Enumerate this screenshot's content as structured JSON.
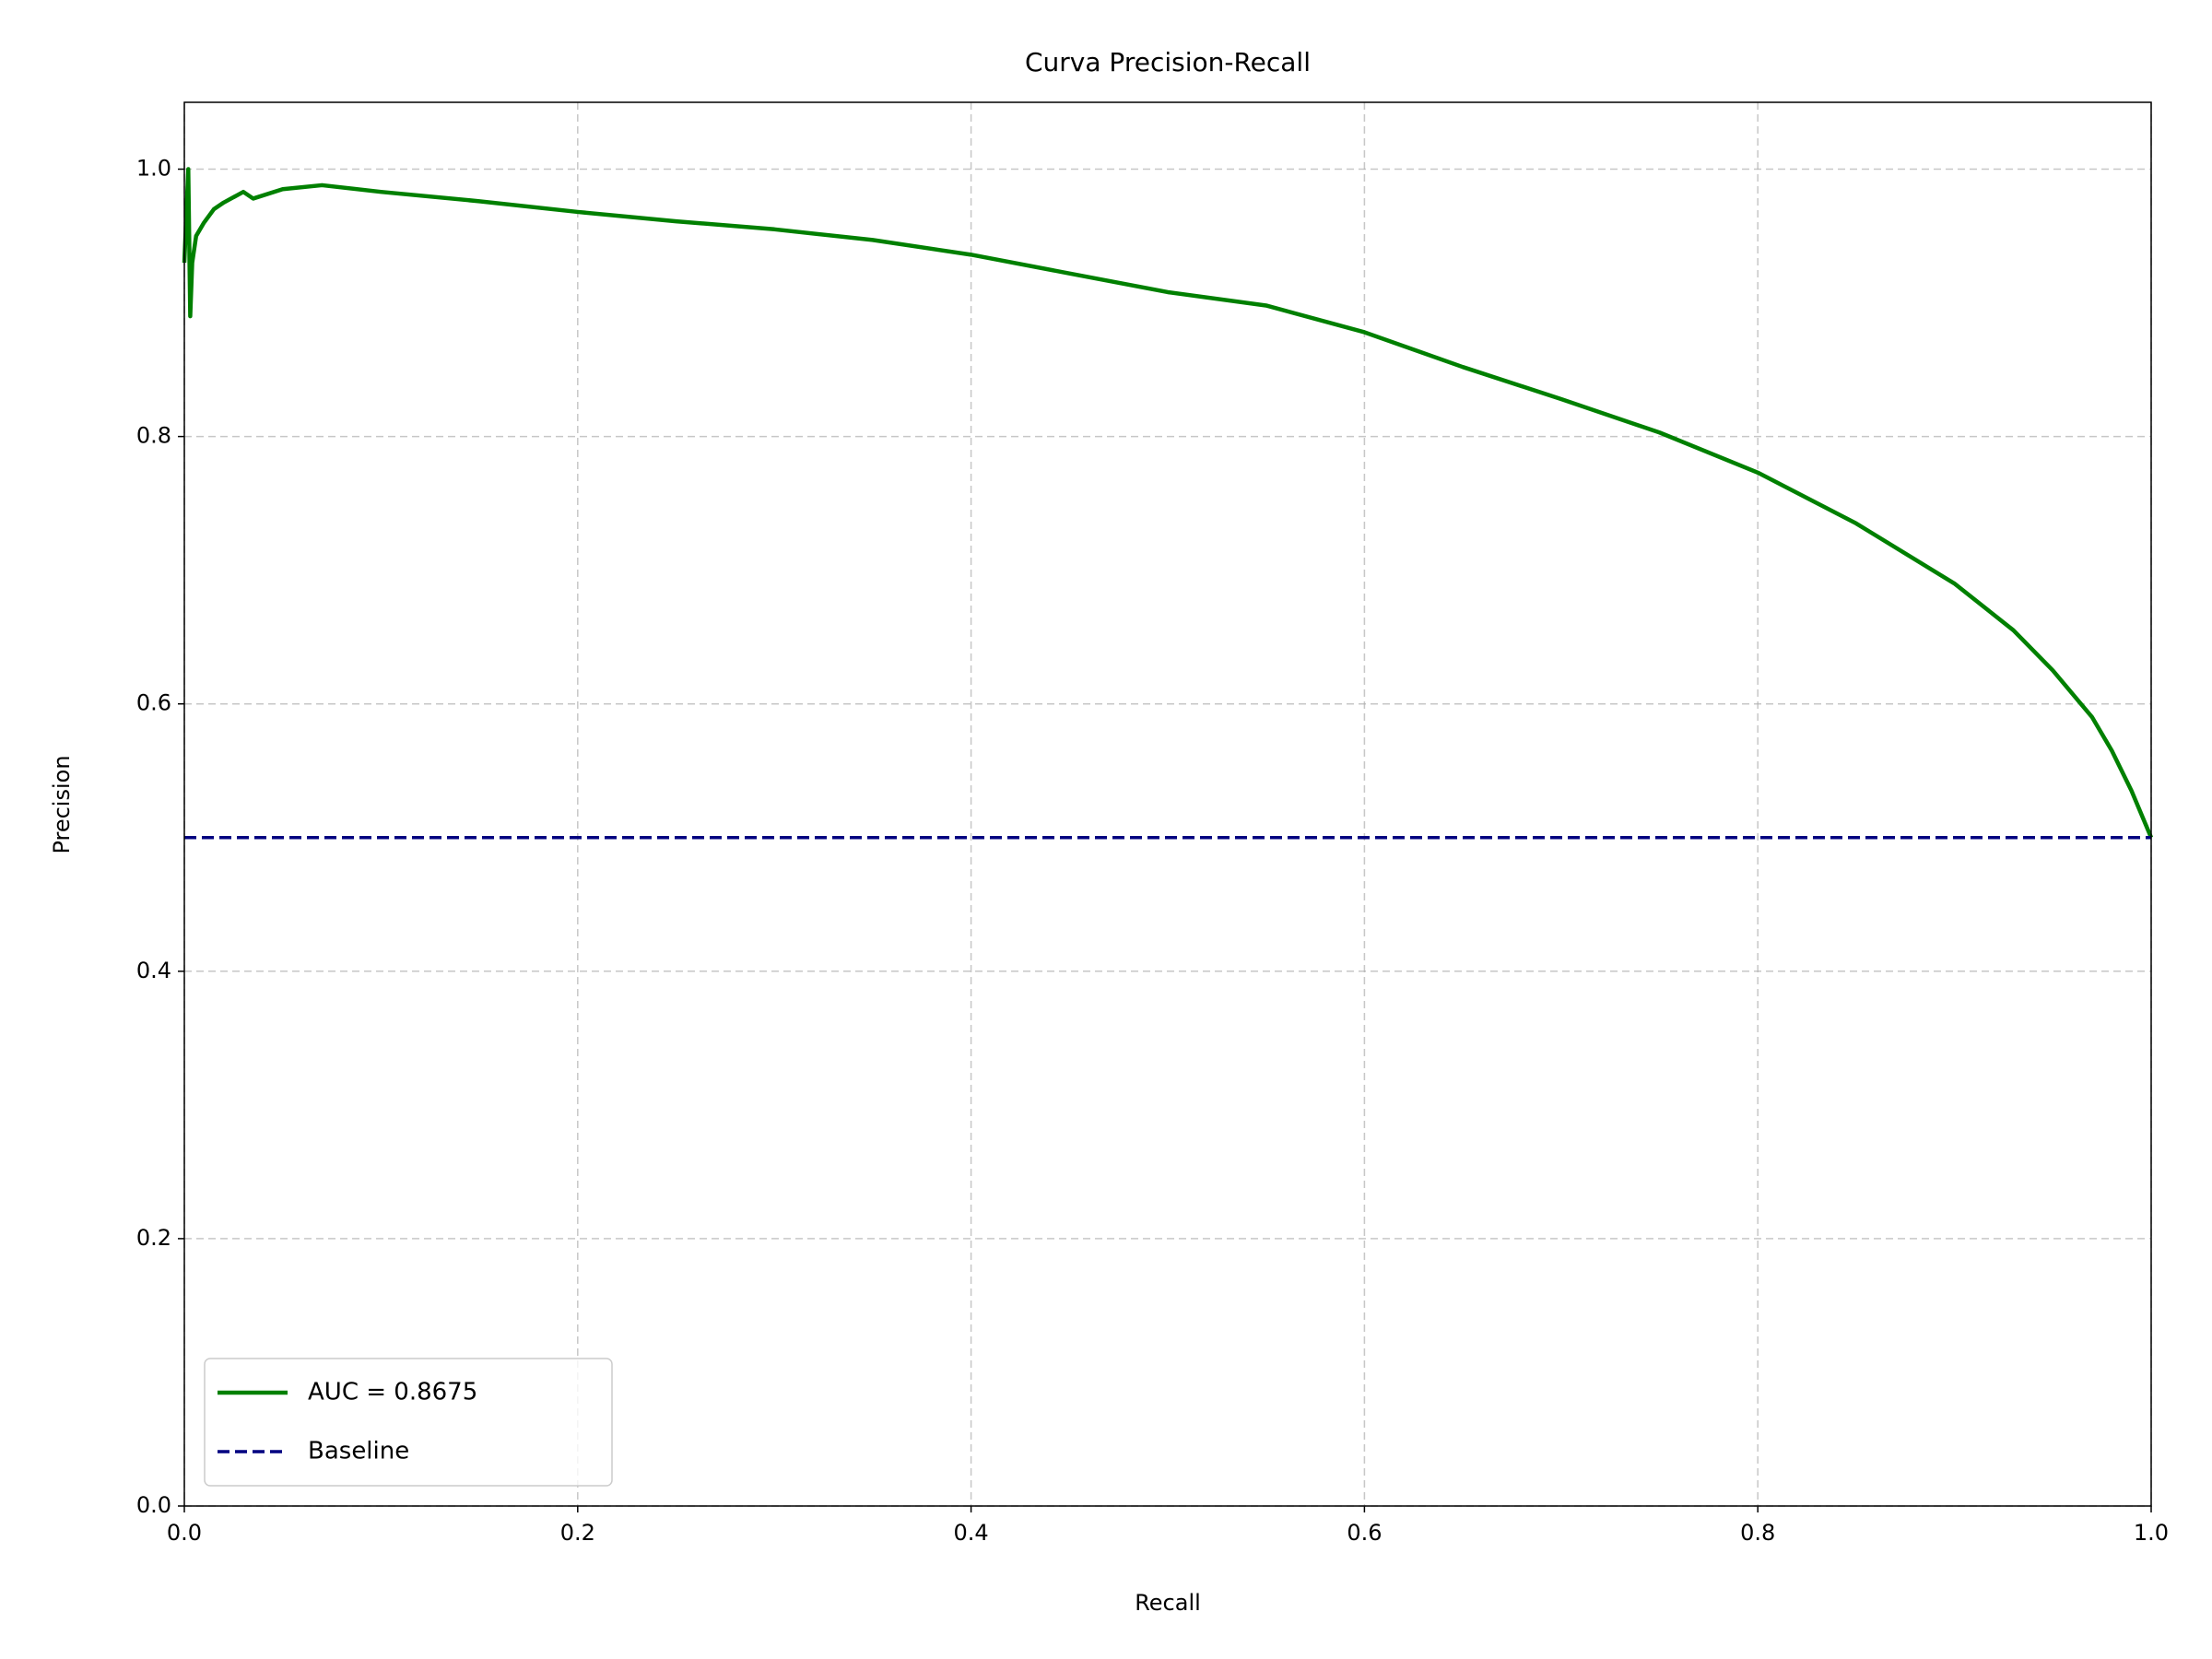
{
  "chart_data": {
    "type": "line",
    "title": "Curva Precision-Recall",
    "x_label": "Recall",
    "y_label": "Precision",
    "xlim": [
      0,
      1
    ],
    "ylim": [
      0,
      1.05
    ],
    "xticks": [
      {
        "value": 0,
        "label": "0.0"
      },
      0.2,
      0.4,
      0.6,
      0.8,
      {
        "value": 1,
        "label": "1.0"
      }
    ],
    "yticks": [
      {
        "value": 0,
        "label": "0.0"
      },
      0.2,
      0.4,
      0.6,
      0.8,
      {
        "value": 1,
        "label": "1.0"
      }
    ],
    "grid": true,
    "legend": "lower left",
    "series": [
      {
        "name": "AUC = 0.8675",
        "color": "#008000",
        "linestyle": "solid",
        "x": [
          0,
          0.002,
          0.003,
          0.004,
          0.006,
          0.01,
          0.015,
          0.02,
          0.03,
          0.035,
          0.05,
          0.07,
          0.1,
          0.15,
          0.2,
          0.25,
          0.3,
          0.35,
          0.4,
          0.45,
          0.5,
          0.55,
          0.6,
          0.65,
          0.7,
          0.75,
          0.8,
          0.85,
          0.9,
          0.93,
          0.95,
          0.97,
          0.98,
          0.99,
          1.0
        ],
        "values": [
          0.93,
          1.0,
          0.89,
          0.93,
          0.95,
          0.96,
          0.97,
          0.975,
          0.983,
          0.978,
          0.985,
          0.988,
          0.983,
          0.976,
          0.968,
          0.961,
          0.955,
          0.947,
          0.936,
          0.922,
          0.908,
          0.898,
          0.878,
          0.852,
          0.828,
          0.803,
          0.773,
          0.735,
          0.69,
          0.655,
          0.625,
          0.59,
          0.565,
          0.535,
          0.5
        ]
      },
      {
        "name": "Baseline",
        "color": "#000080",
        "linestyle": "dashed",
        "x": [
          0,
          1
        ],
        "values": [
          0.5,
          0.5
        ]
      }
    ]
  }
}
